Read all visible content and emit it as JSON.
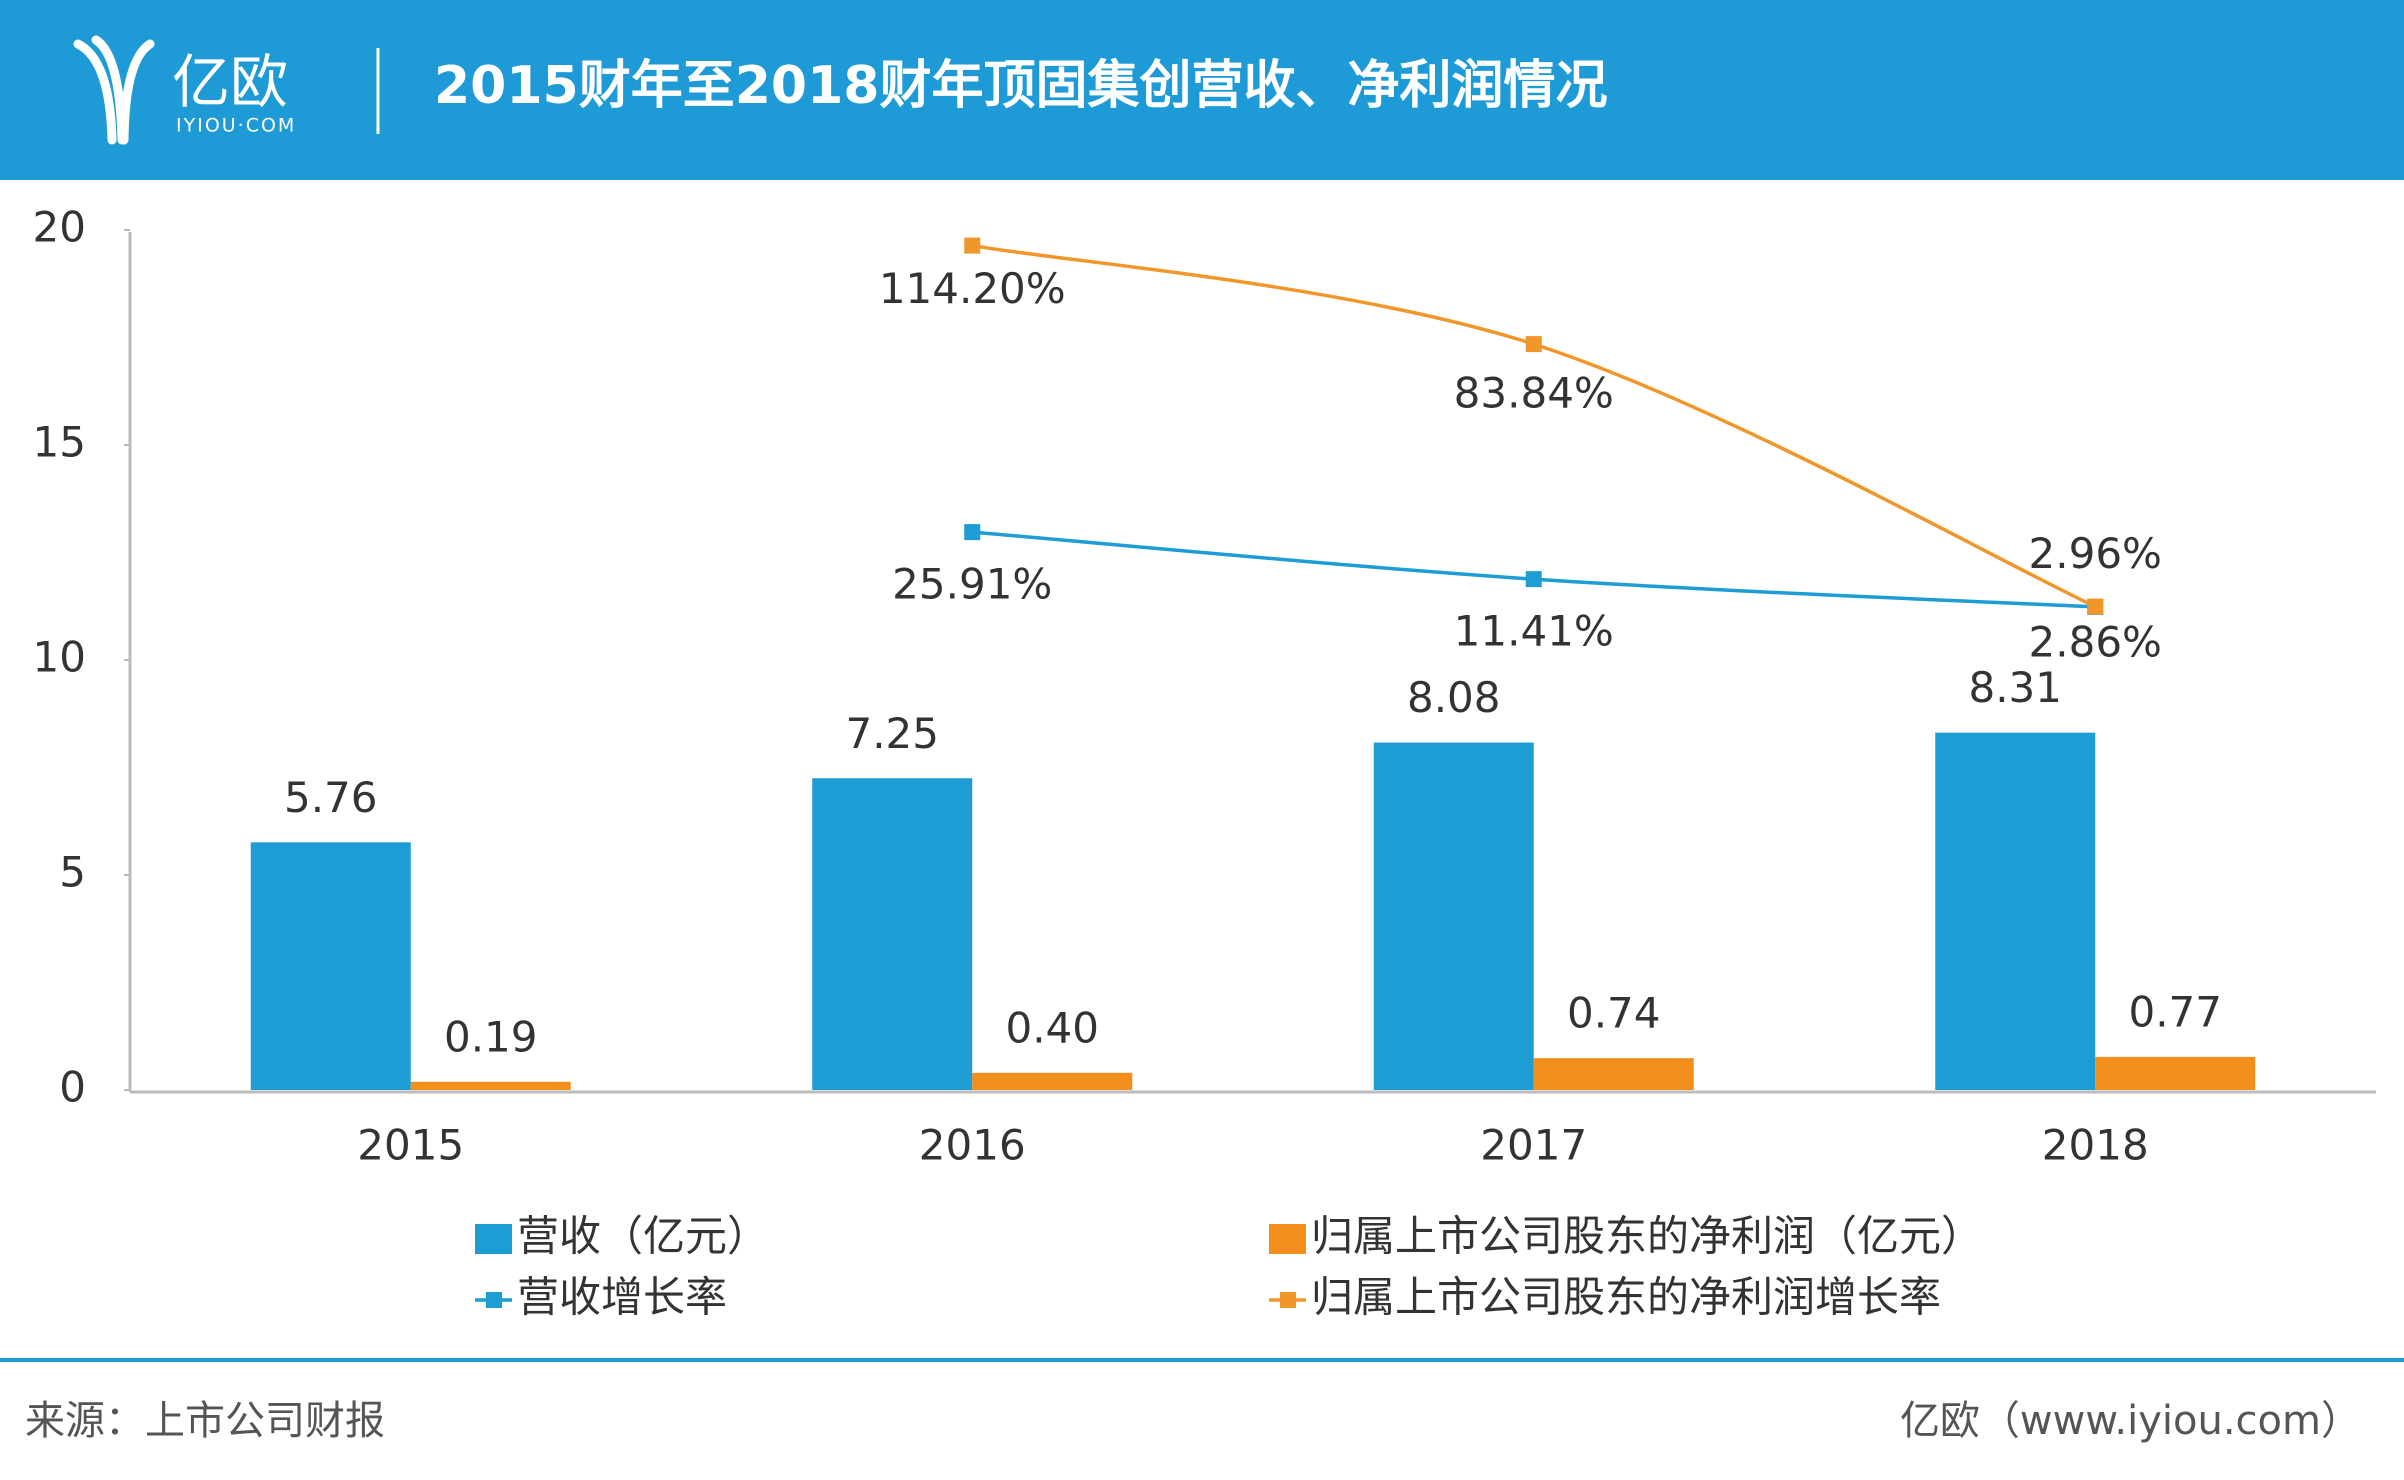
{
  "brand": {
    "name": "亿欧",
    "domain": "IYIOU·COM"
  },
  "chart_data": {
    "type": "bar",
    "title": "2015财年至2018财年顶固集创营收、净利润情况",
    "categories": [
      "2015",
      "2016",
      "2017",
      "2018"
    ],
    "series": [
      {
        "name": "营收（亿元）",
        "type": "bar",
        "color": "#1e9cd4",
        "values": [
          5.76,
          7.25,
          8.08,
          8.31
        ],
        "value_labels": [
          "5.76",
          "7.25",
          "8.08",
          "8.31"
        ]
      },
      {
        "name": "归属上市公司股东的净利润（亿元）",
        "type": "bar",
        "color": "#f28e1c",
        "values": [
          0.19,
          0.4,
          0.74,
          0.77
        ],
        "value_labels": [
          "0.19",
          "0.40",
          "0.74",
          "0.77"
        ]
      },
      {
        "name": "营收增长率",
        "type": "line",
        "axis": "y2",
        "color": "#1e9cd4",
        "values": [
          null,
          25.91,
          11.41,
          2.86
        ],
        "value_labels": [
          null,
          "25.91%",
          "11.41%",
          "2.86%"
        ]
      },
      {
        "name": "归属上市公司股东的净利润增长率",
        "type": "line",
        "axis": "y2",
        "color": "#f0962a",
        "values": [
          null,
          114.2,
          83.84,
          2.96
        ],
        "value_labels": [
          null,
          "114.20%",
          "83.84%",
          "2.96%"
        ]
      }
    ],
    "ylim": [
      0,
      20
    ],
    "yticks": [
      0,
      5,
      10,
      15,
      20
    ],
    "y2lim": [
      -146,
      119
    ],
    "legend": "bottom",
    "source": "来源：上市公司财报",
    "credit": "亿欧（www.iyiou.com）"
  }
}
